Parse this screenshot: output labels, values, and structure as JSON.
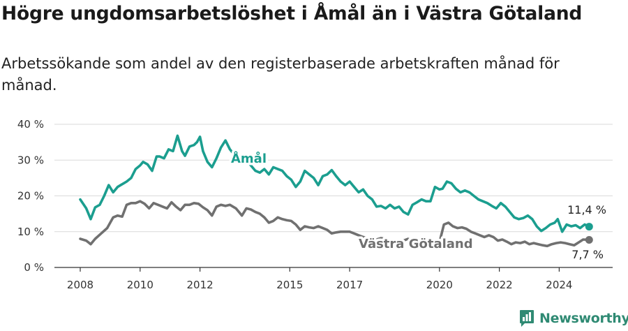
{
  "title": "Högre ungdomsarbetslöshet i Åmål än i Västra Götaland",
  "subtitle": "Arbetssökande som andel av den registerbaserade arbetskraften månad för månad.",
  "brand": {
    "name": "Newsworthy",
    "color": "#2f8a73"
  },
  "colors": {
    "amal": "#1b9e8f",
    "vg": "#707070",
    "grid": "#d9d9d9",
    "axis": "#333333"
  },
  "chart_data": {
    "type": "line",
    "xlabel": "",
    "ylabel": "",
    "x_ticks": [
      "2008",
      "2010",
      "2012",
      "2015",
      "2017",
      "2020",
      "2022",
      "2024"
    ],
    "y_ticks": [
      "0 %",
      "10 %",
      "20 %",
      "30 %",
      "40 %"
    ],
    "ylim": [
      0,
      40
    ],
    "grid": "horizontal",
    "x_unit": "year",
    "series": [
      {
        "name": "Åmål",
        "color_key": "amal",
        "end_label": "11,4 %",
        "x": [
          2008.0,
          2008.2,
          2008.35,
          2008.5,
          2008.65,
          2008.8,
          2008.95,
          2009.1,
          2009.25,
          2009.35,
          2009.45,
          2009.55,
          2009.7,
          2009.85,
          2010.0,
          2010.1,
          2010.25,
          2010.4,
          2010.55,
          2010.65,
          2010.8,
          2010.95,
          2011.1,
          2011.25,
          2011.4,
          2011.5,
          2011.65,
          2011.8,
          2011.9,
          2012.0,
          2012.1,
          2012.25,
          2012.4,
          2012.55,
          2012.7,
          2012.85,
          2013.0,
          2013.1,
          2013.25,
          2013.4,
          2013.55,
          2013.7,
          2013.85,
          2014.0,
          2014.15,
          2014.3,
          2014.45,
          2014.6,
          2014.75,
          2014.9,
          2015.05,
          2015.2,
          2015.35,
          2015.5,
          2015.65,
          2015.8,
          2015.95,
          2016.1,
          2016.25,
          2016.4,
          2016.55,
          2016.7,
          2016.85,
          2017.0,
          2017.15,
          2017.3,
          2017.45,
          2017.6,
          2017.75,
          2017.9,
          2018.05,
          2018.2,
          2018.35,
          2018.5,
          2018.65,
          2018.8,
          2018.95,
          2019.1,
          2019.25,
          2019.4,
          2019.55,
          2019.7,
          2019.85,
          2020.0,
          2020.1,
          2020.25,
          2020.4,
          2020.55,
          2020.7,
          2020.85,
          2021.0,
          2021.15,
          2021.3,
          2021.45,
          2021.6,
          2021.75,
          2021.9,
          2022.05,
          2022.2,
          2022.35,
          2022.5,
          2022.65,
          2022.8,
          2022.95,
          2023.1,
          2023.25,
          2023.4,
          2023.55,
          2023.7,
          2023.85,
          2023.95,
          2024.1,
          2024.25,
          2024.4,
          2024.55,
          2024.7,
          2024.85,
          2025.0
        ],
        "y": [
          19.0,
          16.5,
          13.5,
          16.8,
          17.5,
          20.0,
          23.0,
          21.0,
          22.5,
          23.0,
          23.5,
          24.0,
          25.0,
          27.5,
          28.5,
          29.5,
          28.8,
          27.0,
          31.0,
          31.0,
          30.5,
          33.0,
          32.5,
          36.8,
          32.5,
          31.2,
          33.8,
          34.2,
          35.0,
          36.5,
          32.5,
          29.5,
          28.0,
          30.5,
          33.5,
          35.5,
          33.0,
          32.0,
          30.0,
          29.0,
          30.5,
          28.5,
          27.0,
          26.5,
          27.5,
          26.0,
          28.0,
          27.5,
          27.0,
          25.5,
          24.5,
          22.5,
          24.0,
          27.0,
          26.0,
          25.0,
          23.0,
          25.5,
          26.0,
          27.2,
          25.5,
          24.0,
          23.0,
          24.0,
          22.5,
          21.0,
          21.8,
          20.0,
          19.0,
          17.0,
          17.2,
          16.5,
          17.5,
          16.5,
          17.0,
          15.5,
          14.8,
          17.5,
          18.2,
          19.0,
          18.5,
          18.5,
          22.5,
          21.8,
          22.0,
          24.0,
          23.5,
          22.0,
          21.0,
          21.5,
          21.0,
          20.0,
          19.0,
          18.5,
          18.0,
          17.2,
          16.5,
          18.0,
          17.0,
          15.5,
          14.0,
          13.5,
          13.8,
          14.5,
          13.5,
          11.5,
          10.2,
          11.0,
          12.0,
          12.5,
          13.5,
          10.0,
          12.0,
          11.5,
          11.8,
          11.0,
          12.0,
          11.4
        ]
      },
      {
        "name": "Västra Götaland",
        "color_key": "vg",
        "end_label": "7,7 %",
        "x": [
          2008.0,
          2008.2,
          2008.35,
          2008.5,
          2008.7,
          2008.9,
          2009.1,
          2009.25,
          2009.4,
          2009.55,
          2009.7,
          2009.85,
          2010.0,
          2010.15,
          2010.3,
          2010.45,
          2010.6,
          2010.75,
          2010.9,
          2011.05,
          2011.2,
          2011.35,
          2011.5,
          2011.65,
          2011.8,
          2011.95,
          2012.1,
          2012.25,
          2012.4,
          2012.55,
          2012.7,
          2012.85,
          2013.0,
          2013.2,
          2013.4,
          2013.55,
          2013.7,
          2013.85,
          2014.0,
          2014.15,
          2014.3,
          2014.45,
          2014.6,
          2014.75,
          2014.9,
          2015.05,
          2015.2,
          2015.35,
          2015.5,
          2015.65,
          2015.8,
          2015.95,
          2016.1,
          2016.25,
          2016.4,
          2016.55,
          2016.7,
          2016.85,
          2017.0,
          2017.15,
          2017.3,
          2017.45,
          2017.6,
          2017.75,
          2017.9,
          2018.05,
          2018.2,
          2018.35,
          2018.5,
          2018.65,
          2018.8,
          2018.95,
          2019.1,
          2019.25,
          2019.4,
          2019.55,
          2019.7,
          2019.85,
          2020.0,
          2020.15,
          2020.3,
          2020.45,
          2020.6,
          2020.75,
          2020.9,
          2021.05,
          2021.2,
          2021.35,
          2021.5,
          2021.65,
          2021.8,
          2021.95,
          2022.1,
          2022.25,
          2022.4,
          2022.55,
          2022.7,
          2022.85,
          2023.0,
          2023.15,
          2023.3,
          2023.45,
          2023.6,
          2023.75,
          2023.9,
          2024.05,
          2024.2,
          2024.35,
          2024.5,
          2024.65,
          2024.8,
          2025.0
        ],
        "y": [
          8.0,
          7.5,
          6.5,
          8.0,
          9.5,
          11.0,
          14.0,
          14.5,
          14.2,
          17.5,
          18.0,
          18.0,
          18.5,
          17.8,
          16.5,
          18.0,
          17.5,
          17.0,
          16.5,
          18.2,
          17.0,
          16.0,
          17.5,
          17.5,
          18.0,
          17.8,
          16.8,
          16.0,
          14.5,
          17.0,
          17.5,
          17.2,
          17.5,
          16.5,
          14.5,
          16.5,
          16.2,
          15.5,
          15.0,
          14.0,
          12.5,
          13.0,
          14.0,
          13.5,
          13.2,
          13.0,
          12.0,
          10.5,
          11.5,
          11.2,
          11.0,
          11.5,
          11.0,
          10.5,
          9.5,
          9.8,
          10.0,
          10.0,
          10.0,
          9.5,
          9.0,
          8.5,
          8.2,
          8.0,
          7.8,
          8.2,
          8.0,
          7.5,
          7.2,
          7.0,
          7.5,
          8.0,
          7.5,
          7.2,
          7.0,
          7.5,
          8.0,
          7.5,
          7.0,
          12.0,
          12.5,
          11.5,
          11.0,
          11.2,
          10.8,
          10.0,
          9.5,
          9.0,
          8.5,
          9.0,
          8.5,
          7.5,
          7.8,
          7.2,
          6.5,
          7.0,
          6.8,
          7.2,
          6.5,
          6.8,
          6.5,
          6.2,
          6.0,
          6.5,
          6.8,
          7.0,
          6.8,
          6.5,
          6.2,
          7.0,
          7.8,
          7.7
        ]
      }
    ]
  }
}
